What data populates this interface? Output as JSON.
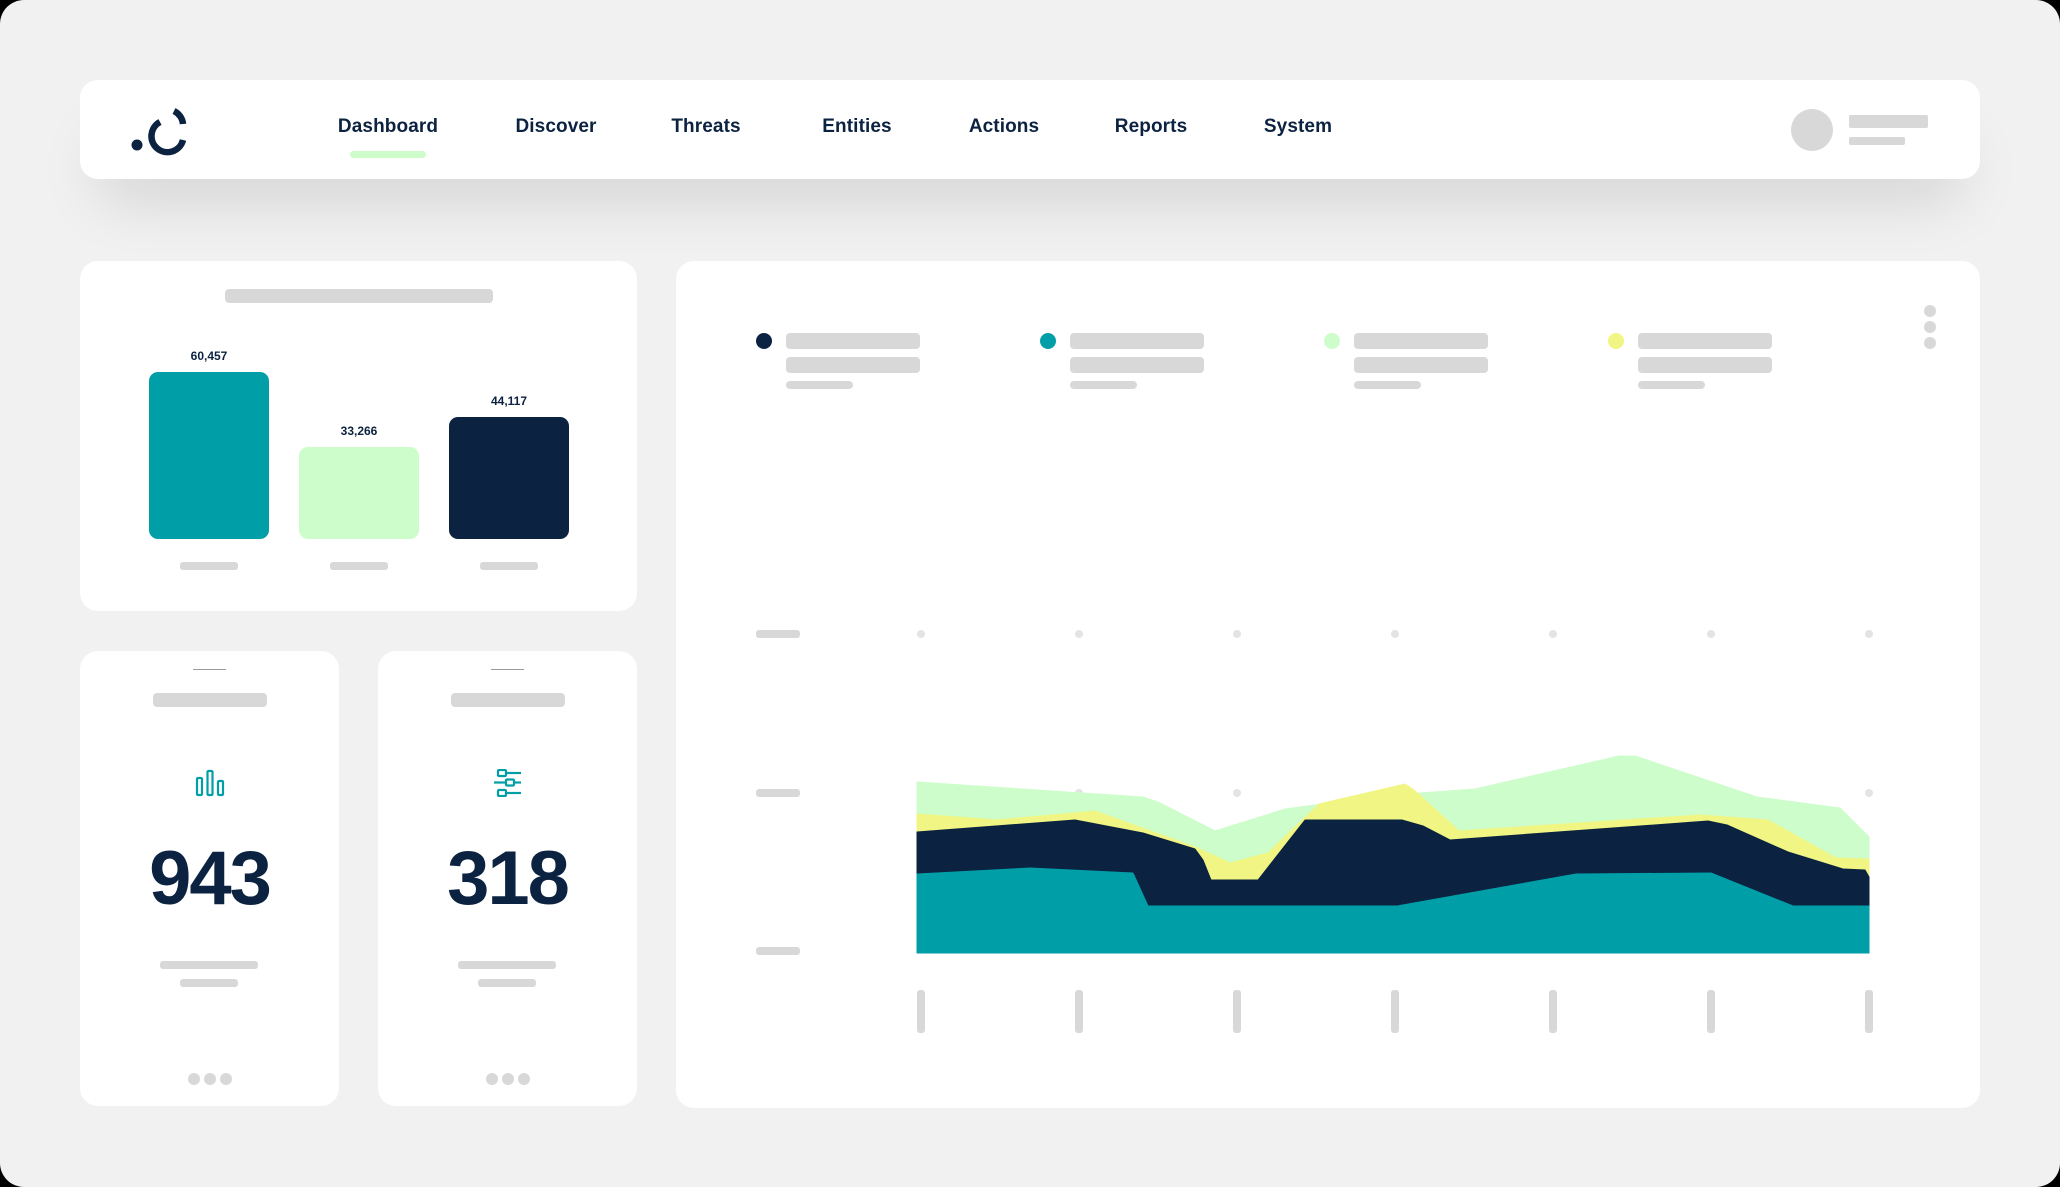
{
  "colors": {
    "navy": "#0b2240",
    "teal": "#009fa8",
    "mint": "#cdfdca",
    "yellow": "#f1f583",
    "skeleton": "#d8d8d8",
    "background": "#f1f1f1"
  },
  "nav": {
    "logo": "logo-icon",
    "items": [
      {
        "label": "Dashboard",
        "active": true
      },
      {
        "label": "Discover",
        "active": false
      },
      {
        "label": "Threats",
        "active": false
      },
      {
        "label": "Entities",
        "active": false
      },
      {
        "label": "Actions",
        "active": false
      },
      {
        "label": "Reports",
        "active": false
      },
      {
        "label": "System",
        "active": false
      }
    ],
    "user": {
      "avatar": "avatar-placeholder"
    }
  },
  "bar_card": {
    "bars": [
      {
        "value_label": "60,457",
        "color": "#009fa8"
      },
      {
        "value_label": "33,266",
        "color": "#cdfdca"
      },
      {
        "value_label": "44,117",
        "color": "#0b2240"
      }
    ]
  },
  "stat_cards": [
    {
      "icon": "bar-chart-icon",
      "value": "943"
    },
    {
      "icon": "sliders-icon",
      "value": "318"
    }
  ],
  "area_card": {
    "legend": [
      {
        "color": "#0b2240"
      },
      {
        "color": "#009fa8"
      },
      {
        "color": "#cdfdca"
      },
      {
        "color": "#f1f583"
      }
    ],
    "menu_icon": "more-vertical-icon"
  },
  "chart_data": [
    {
      "type": "bar",
      "title": "",
      "categories": [
        "",
        "",
        ""
      ],
      "values": [
        60457,
        33266,
        44117
      ],
      "data_labels": [
        "60,457",
        "33,266",
        "44,117"
      ],
      "colors": [
        "#009fa8",
        "#cdfdca",
        "#0b2240"
      ],
      "xlabel": "",
      "ylabel": "",
      "grid": false
    },
    {
      "type": "area",
      "stacked": true,
      "title": "",
      "xlabel": "",
      "ylabel": "",
      "x_ticks": 7,
      "y_ticks": 3,
      "grid": "dots",
      "series": [
        {
          "name": "",
          "color": "#009fa8",
          "points": [
            [
              917,
              874
            ],
            [
              1030,
              868
            ],
            [
              1133,
              873
            ],
            [
              1148,
              906
            ],
            [
              1397,
              906
            ],
            [
              1576,
              874
            ],
            [
              1711,
              873
            ],
            [
              1793,
              906
            ],
            [
              1869,
              906
            ]
          ]
        },
        {
          "name": "",
          "color": "#0b2240",
          "points": [
            [
              917,
              832
            ],
            [
              1075,
              820
            ],
            [
              1143,
              833
            ],
            [
              1195,
              849
            ],
            [
              1203,
              860
            ],
            [
              1211,
              880
            ],
            [
              1258,
              880
            ],
            [
              1305,
              820
            ],
            [
              1402,
              820
            ],
            [
              1423,
              826
            ],
            [
              1450,
              840
            ],
            [
              1708,
              821
            ],
            [
              1727,
              825
            ],
            [
              1788,
              852
            ],
            [
              1843,
              869
            ],
            [
              1865,
              870
            ],
            [
              1869,
              877
            ]
          ]
        },
        {
          "name": "",
          "color": "#f1f583",
          "points": [
            [
              917,
              814
            ],
            [
              997,
              820
            ],
            [
              1095,
              811
            ],
            [
              1195,
              847
            ],
            [
              1230,
              863
            ],
            [
              1268,
              853
            ],
            [
              1319,
              804
            ],
            [
              1405,
              784
            ],
            [
              1414,
              790
            ],
            [
              1459,
              831
            ],
            [
              1700,
              815
            ],
            [
              1768,
              820
            ],
            [
              1836,
              858
            ],
            [
              1869,
              859
            ],
            [
              1869,
              872
            ]
          ]
        },
        {
          "name": "",
          "color": "#cdfdca",
          "points": [
            [
              917,
              782
            ],
            [
              1143,
              797
            ],
            [
              1158,
              802
            ],
            [
              1215,
              831
            ],
            [
              1285,
              809
            ],
            [
              1375,
              797
            ],
            [
              1420,
              793
            ],
            [
              1475,
              789
            ],
            [
              1619,
              756
            ],
            [
              1635,
              756
            ],
            [
              1757,
              797
            ],
            [
              1840,
              808
            ],
            [
              1869,
              837
            ]
          ]
        }
      ]
    }
  ]
}
